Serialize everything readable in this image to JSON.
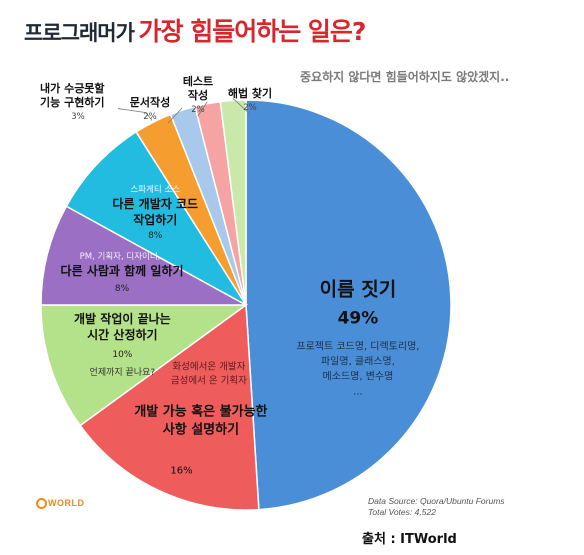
{
  "title": {
    "prefix": "프로그래머가",
    "main": "가장 힘들어하는 일은?"
  },
  "subtitle": "중요하지 않다면 힘들어하지도 않았겠지..",
  "source": {
    "line1": "Data Source: Quora/Ubuntu Forums",
    "line2": "Total Votes: 4,522"
  },
  "logo": "WORLD",
  "credit": "출처 : ITWorld",
  "chart_data": {
    "type": "pie",
    "title": "가장 힘들어하는 일은?",
    "total_votes": 4522,
    "slices": [
      {
        "label": "이름 짓기",
        "value": 49,
        "display": "49%",
        "color": "#4b8ed8",
        "note": [
          "프로젝트 코드명, 디렉토리명,",
          "파일명, 클래스명,",
          "메소드명, 변수명",
          "..."
        ]
      },
      {
        "label": "개발 가능 혹은 불가능한 사항 설명하기",
        "value": 16,
        "display": "16%",
        "color": "#ee5c5c",
        "note": [
          "화성에서온 개발자",
          "금성에서 온 기획자"
        ]
      },
      {
        "label": "개발 작업이 끝나는 시간 산정하기",
        "value": 10,
        "display": "10%",
        "color": "#b4e28a",
        "note": [
          "언제까지 끝나요?"
        ]
      },
      {
        "label": "다른 사람과 함께 일하기",
        "value": 8,
        "display": "8%",
        "color": "#9a6fc4",
        "note": [
          "PM, 기획자, 디자이너,"
        ]
      },
      {
        "label": "다른 개발자 코드 작업하기",
        "value": 8,
        "display": "8%",
        "color": "#22bce0",
        "note": [
          "스파게티 소스"
        ]
      },
      {
        "label": "내가 수긍못할 기능 구현하기",
        "value": 3,
        "display": "3%",
        "color": "#f59e2f"
      },
      {
        "label": "문서작성",
        "value": 2,
        "display": "2%",
        "color": "#a9c9ec"
      },
      {
        "label": "테스트 작성",
        "value": 2,
        "display": "2%",
        "color": "#f5a3a3"
      },
      {
        "label": "해법 찾기",
        "value": 2,
        "display": "2%",
        "color": "#c9e8a9"
      }
    ]
  }
}
